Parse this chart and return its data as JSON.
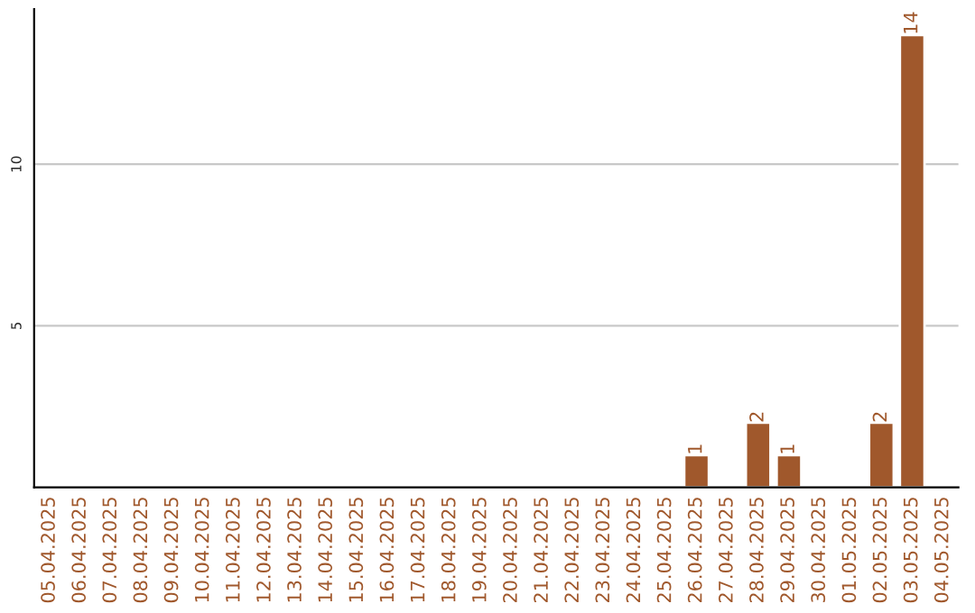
{
  "chart_data": {
    "type": "bar",
    "categories": [
      "05.04.2025",
      "06.04.2025",
      "07.04.2025",
      "08.04.2025",
      "09.04.2025",
      "10.04.2025",
      "11.04.2025",
      "12.04.2025",
      "13.04.2025",
      "14.04.2025",
      "15.04.2025",
      "16.04.2025",
      "17.04.2025",
      "18.04.2025",
      "19.04.2025",
      "20.04.2025",
      "21.04.2025",
      "22.04.2025",
      "23.04.2025",
      "24.04.2025",
      "25.04.2025",
      "26.04.2025",
      "27.04.2025",
      "28.04.2025",
      "29.04.2025",
      "30.04.2025",
      "01.05.2025",
      "02.05.2025",
      "03.05.2025",
      "04.05.2025"
    ],
    "values": [
      null,
      null,
      null,
      null,
      null,
      null,
      null,
      null,
      null,
      null,
      null,
      null,
      null,
      null,
      null,
      null,
      null,
      null,
      null,
      null,
      null,
      1,
      null,
      2,
      1,
      null,
      null,
      2,
      14,
      null
    ],
    "value_labels": [
      null,
      null,
      null,
      null,
      null,
      null,
      null,
      null,
      null,
      null,
      null,
      null,
      null,
      null,
      null,
      null,
      null,
      null,
      null,
      null,
      null,
      "1",
      null,
      "2",
      "1",
      null,
      null,
      "2",
      "14",
      null
    ],
    "color": "#a0582c",
    "ylim": [
      0,
      14.8
    ],
    "yticks": [
      5,
      10
    ],
    "grid": "y",
    "legend": false
  }
}
